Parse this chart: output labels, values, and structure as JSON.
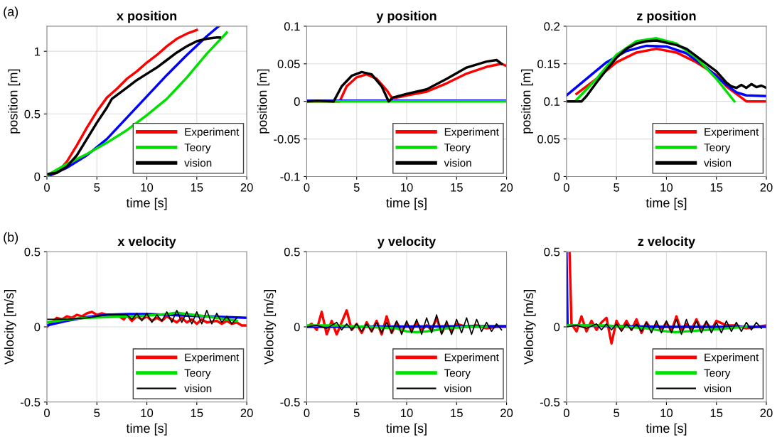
{
  "chart_data": [
    {
      "type": "line",
      "title": "x position",
      "xlabel": "time [s]",
      "ylabel": "position [m]",
      "annotations": [
        "(a)"
      ],
      "xlim": [
        0,
        20
      ],
      "xticks": [
        0,
        5,
        10,
        15,
        20
      ],
      "ylim": [
        0,
        1.2
      ],
      "yticks": [
        0,
        0.5,
        1
      ],
      "grid": true,
      "legend": "bottom right",
      "series": [
        {
          "name": "Experiment",
          "color": "#ff0000",
          "x": [
            0,
            1,
            2,
            3,
            4,
            5,
            6,
            7,
            8,
            9,
            10,
            11,
            12,
            13,
            14,
            15
          ],
          "values": [
            0,
            0.03,
            0.12,
            0.25,
            0.39,
            0.52,
            0.63,
            0.7,
            0.78,
            0.84,
            0.91,
            0.97,
            1.04,
            1.1,
            1.14,
            1.17
          ]
        },
        {
          "color": "#0000ff",
          "x": [
            0,
            2,
            4,
            6,
            8,
            10,
            12,
            14,
            16,
            17.2
          ],
          "values": [
            0,
            0.07,
            0.17,
            0.3,
            0.47,
            0.64,
            0.81,
            0.97,
            1.12,
            1.2
          ]
        },
        {
          "name": "Teory",
          "color": "#00e000",
          "x": [
            0,
            2,
            4,
            6,
            8,
            10,
            12,
            14,
            16,
            18
          ],
          "values": [
            0.01,
            0.1,
            0.18,
            0.27,
            0.37,
            0.49,
            0.62,
            0.79,
            0.98,
            1.15
          ]
        },
        {
          "name": "vision",
          "color": "#000000",
          "x": [
            0,
            1,
            2,
            3,
            4,
            5,
            6,
            6.5,
            7,
            8,
            9,
            10,
            11,
            12,
            13,
            14,
            15,
            16,
            17,
            17.3
          ],
          "values": [
            0.02,
            0.03,
            0.08,
            0.17,
            0.3,
            0.43,
            0.55,
            0.62,
            0.65,
            0.71,
            0.77,
            0.82,
            0.87,
            0.93,
            0.99,
            1.04,
            1.08,
            1.1,
            1.11,
            1.11
          ]
        }
      ]
    },
    {
      "type": "line",
      "title": "y position",
      "xlabel": "time [s]",
      "ylabel": "position [m]",
      "xlim": [
        0,
        20
      ],
      "xticks": [
        0,
        5,
        10,
        15,
        20
      ],
      "ylim": [
        -0.1,
        0.1
      ],
      "yticks": [
        -0.1,
        -0.05,
        0,
        0.05,
        0.1
      ],
      "grid": true,
      "legend": "bottom right",
      "series": [
        {
          "name": "Experiment",
          "color": "#ff0000",
          "x": [
            0,
            3.3,
            4,
            5,
            6,
            7,
            8,
            8.5,
            9,
            10,
            12,
            14,
            16,
            18,
            19.5,
            20
          ],
          "values": [
            0,
            0,
            0.02,
            0.032,
            0.036,
            0.03,
            0.015,
            0.005,
            0.005,
            0.008,
            0.013,
            0.024,
            0.037,
            0.046,
            0.05,
            0.047
          ]
        },
        {
          "color": "#0000ff",
          "x": [
            0,
            20
          ],
          "values": [
            0.001,
            0.001
          ]
        },
        {
          "name": "Teory",
          "color": "#00e000",
          "x": [
            0,
            20
          ],
          "values": [
            0,
            0
          ]
        },
        {
          "name": "vision",
          "color": "#000000",
          "x": [
            0,
            1,
            2.7,
            3.5,
            4.5,
            5.5,
            6.5,
            7.5,
            8.2,
            8.6,
            10,
            12,
            14,
            16,
            18,
            19,
            19.5
          ],
          "values": [
            0,
            0.001,
            0,
            0.02,
            0.034,
            0.039,
            0.036,
            0.02,
            0,
            0.005,
            0.01,
            0.016,
            0.03,
            0.045,
            0.053,
            0.055,
            0.05
          ]
        }
      ]
    },
    {
      "type": "line",
      "title": "z position",
      "xlabel": "time [s]",
      "ylabel": "position [m]",
      "xlim": [
        0,
        20
      ],
      "xticks": [
        0,
        5,
        10,
        15,
        20
      ],
      "ylim": [
        0,
        0.2
      ],
      "yticks": [
        0,
        0.05,
        0.1,
        0.15,
        0.2
      ],
      "grid": true,
      "legend": "bottom right",
      "series": [
        {
          "name": "Experiment",
          "color": "#ff0000",
          "x": [
            1,
            3,
            5,
            7,
            9,
            11,
            13,
            15,
            16,
            17,
            18,
            20
          ],
          "values": [
            0.11,
            0.13,
            0.152,
            0.165,
            0.17,
            0.165,
            0.152,
            0.135,
            0.12,
            0.11,
            0.1,
            0.1
          ]
        },
        {
          "color": "#0000ff",
          "x": [
            0,
            2,
            4,
            6,
            8,
            10,
            12,
            14,
            16,
            17,
            18,
            20
          ],
          "values": [
            0.108,
            0.13,
            0.152,
            0.167,
            0.174,
            0.173,
            0.164,
            0.145,
            0.122,
            0.112,
            0.108,
            0.107
          ]
        },
        {
          "name": "Teory",
          "color": "#00e000",
          "x": [
            1,
            3,
            5,
            7,
            9,
            11,
            13,
            15,
            16.8
          ],
          "values": [
            0.102,
            0.13,
            0.162,
            0.18,
            0.184,
            0.177,
            0.158,
            0.13,
            0.1
          ]
        },
        {
          "name": "vision",
          "color": "#000000",
          "x": [
            0,
            1.5,
            2,
            3,
            4,
            5,
            6,
            7,
            8,
            9,
            10,
            11,
            12,
            13,
            14,
            15,
            16,
            16.5,
            17,
            17.5,
            18,
            18.5,
            19,
            19.5,
            20
          ],
          "values": [
            0.1,
            0.1,
            0.107,
            0.125,
            0.142,
            0.158,
            0.17,
            0.177,
            0.18,
            0.181,
            0.178,
            0.175,
            0.17,
            0.16,
            0.15,
            0.14,
            0.125,
            0.12,
            0.118,
            0.122,
            0.118,
            0.123,
            0.119,
            0.121,
            0.118
          ]
        }
      ]
    },
    {
      "type": "line",
      "title": "x velocity",
      "xlabel": "time [s]",
      "ylabel": "Velocity [m/s]",
      "annotations": [
        "(b)"
      ],
      "xlim": [
        0,
        20
      ],
      "xticks": [
        0,
        5,
        10,
        15,
        20
      ],
      "ylim": [
        -0.5,
        0.5
      ],
      "yticks": [
        -0.5,
        0,
        0.5
      ],
      "grid": true,
      "legend": "bottom right",
      "series": [
        {
          "name": "Experiment",
          "color": "#ff0000",
          "x": [
            0,
            0.5,
            1,
            1.5,
            2,
            2.5,
            3,
            3.5,
            4,
            4.5,
            5,
            5.5,
            6,
            7,
            7.7,
            8,
            8.5,
            9,
            9.5,
            10,
            10.5,
            11,
            11.5,
            12,
            12.5,
            13,
            13.5,
            14,
            14.5,
            15,
            15.5,
            16,
            17,
            17.5,
            18,
            18.5,
            19,
            19.5,
            20
          ],
          "values": [
            0,
            0.03,
            0.06,
            0.05,
            0.07,
            0.06,
            0.08,
            0.07,
            0.09,
            0.1,
            0.08,
            0.09,
            0.08,
            0.08,
            0.05,
            0.08,
            0.04,
            0.07,
            0.05,
            0.07,
            0.04,
            0.06,
            0.04,
            0.07,
            0.05,
            0.03,
            0.06,
            0.03,
            0.05,
            0.02,
            0.05,
            0.03,
            0.04,
            0.02,
            0.04,
            0.02,
            0.03,
            0.01,
            0.01
          ]
        },
        {
          "color": "#0000ff",
          "x": [
            0,
            2,
            4,
            6,
            8,
            10,
            12,
            14,
            16,
            18,
            20
          ],
          "values": [
            0.01,
            0.04,
            0.065,
            0.08,
            0.085,
            0.085,
            0.08,
            0.075,
            0.07,
            0.065,
            0.06
          ]
        },
        {
          "name": "Teory",
          "color": "#00e000",
          "x": [
            0,
            2,
            4,
            6,
            8,
            10,
            12,
            13,
            14,
            16,
            18,
            19
          ],
          "values": [
            0.03,
            0.05,
            0.06,
            0.065,
            0.07,
            0.075,
            0.085,
            0.095,
            0.085,
            0.07,
            0.05,
            0.04
          ]
        },
        {
          "name": "vision",
          "color": "#000000",
          "x": [
            0,
            2,
            4,
            6,
            8,
            8.5,
            9,
            9.5,
            10,
            10.5,
            11,
            11.5,
            12,
            12.5,
            13,
            13.5,
            14,
            14.5,
            15,
            15.5,
            16,
            16.5,
            17,
            17.5,
            18,
            18.5,
            19
          ],
          "values": [
            0.05,
            0.05,
            0.06,
            0.08,
            0.08,
            0.05,
            0.09,
            0.04,
            0.09,
            0.03,
            0.08,
            0.04,
            0.1,
            0.03,
            0.11,
            0.03,
            0.1,
            0.02,
            0.1,
            0.02,
            0.11,
            0.02,
            0.09,
            0.03,
            0.07,
            0.02,
            0.06
          ]
        }
      ]
    },
    {
      "type": "line",
      "title": "y velocity",
      "xlabel": "time [s]",
      "ylabel": "Velocity [m/s]",
      "xlim": [
        0,
        20
      ],
      "xticks": [
        0,
        5,
        10,
        15,
        20
      ],
      "ylim": [
        -0.5,
        0.5
      ],
      "yticks": [
        -0.5,
        0,
        0.5
      ],
      "grid": true,
      "legend": "bottom right",
      "series": [
        {
          "name": "Experiment",
          "color": "#ff0000",
          "x": [
            0,
            0.5,
            1,
            1.5,
            2,
            2.5,
            3,
            3.5,
            4,
            4.5,
            5,
            5.5,
            6,
            6.5,
            7,
            7.5,
            8,
            8.5,
            9,
            9.5,
            10,
            10.5,
            11,
            11.5,
            12,
            12.5,
            13,
            13.5,
            14,
            14.5,
            15,
            16,
            17,
            18,
            19,
            20
          ],
          "values": [
            0,
            0.02,
            -0.02,
            0.1,
            -0.05,
            0.04,
            -0.05,
            0.03,
            0.11,
            -0.02,
            0.02,
            -0.04,
            0.03,
            -0.03,
            0.04,
            -0.05,
            0.07,
            -0.04,
            0.03,
            -0.03,
            0.02,
            -0.02,
            0.03,
            -0.02,
            0.01,
            -0.02,
            0.06,
            -0.04,
            0.02,
            -0.03,
            0.02,
            0,
            0.01,
            -0.01,
            0,
            0
          ]
        },
        {
          "color": "#0000ff",
          "x": [
            0,
            20
          ],
          "values": [
            0,
            0.005
          ]
        },
        {
          "name": "Teory",
          "color": "#00e000",
          "x": [
            0,
            3,
            6,
            9,
            10,
            11,
            12,
            13,
            14,
            16,
            18
          ],
          "values": [
            0.01,
            0.01,
            0,
            -0.01,
            -0.03,
            -0.035,
            -0.03,
            -0.02,
            -0.01,
            0,
            0
          ]
        },
        {
          "name": "vision",
          "color": "#000000",
          "x": [
            0,
            1,
            2,
            3,
            3.5,
            4,
            4.5,
            5,
            5.5,
            6,
            6.5,
            7,
            7.5,
            8,
            8.5,
            9,
            9.5,
            10,
            10.5,
            11,
            11.5,
            12,
            12.5,
            13,
            13.5,
            14,
            14.5,
            15,
            15.5,
            16,
            16.5,
            17,
            17.5,
            18,
            18.5,
            19,
            19.5
          ],
          "values": [
            0,
            0.01,
            -0.01,
            0.03,
            -0.02,
            0.02,
            -0.02,
            0.02,
            -0.03,
            0.02,
            -0.03,
            0.03,
            -0.04,
            0.03,
            -0.04,
            0.04,
            -0.05,
            0.04,
            -0.04,
            0.05,
            -0.05,
            0.06,
            -0.04,
            0.08,
            -0.05,
            0.04,
            -0.05,
            0.05,
            -0.04,
            0.06,
            -0.05,
            0.05,
            -0.03,
            0.03,
            -0.03,
            0.02,
            -0.02
          ]
        }
      ]
    },
    {
      "type": "line",
      "title": "z velocity",
      "xlabel": "time [s]",
      "ylabel": "Velocity [m/s]",
      "xlim": [
        0,
        20
      ],
      "xticks": [
        0,
        5,
        10,
        15,
        20
      ],
      "ylim": [
        -0.5,
        0.5
      ],
      "yticks": [
        -0.5,
        0,
        0.5
      ],
      "grid": true,
      "legend": "bottom right",
      "series": [
        {
          "name": "Experiment",
          "color": "#ff0000",
          "x": [
            0.3,
            0.5,
            1,
            1.5,
            2,
            2.5,
            3,
            3.5,
            4,
            4.5,
            5,
            5.5,
            6,
            6.5,
            7,
            7.5,
            8,
            8.5,
            9,
            9.5,
            10,
            10.5,
            11,
            11.5,
            12,
            12.5,
            13,
            13.5,
            14,
            14.5,
            15,
            16,
            17,
            18,
            19,
            20
          ],
          "values": [
            0.5,
            0.02,
            -0.03,
            0.07,
            -0.03,
            0.04,
            -0.02,
            0.03,
            0.06,
            -0.11,
            0.04,
            -0.02,
            0.04,
            -0.02,
            0.05,
            -0.04,
            0.03,
            -0.02,
            0.02,
            -0.02,
            0.03,
            -0.03,
            0.07,
            -0.03,
            0.02,
            -0.02,
            0.05,
            -0.02,
            0.03,
            -0.02,
            0.04,
            0.01,
            0.01,
            -0.01,
            0,
            0.01
          ]
        },
        {
          "color": "#0000ff",
          "x": [
            0,
            0.1,
            10,
            20
          ],
          "values": [
            0.5,
            0.01,
            0,
            0
          ]
        },
        {
          "name": "Teory",
          "color": "#00e000",
          "x": [
            0,
            4,
            8,
            10,
            11,
            12,
            14,
            16,
            18
          ],
          "values": [
            0.01,
            0.01,
            -0.01,
            -0.03,
            -0.035,
            -0.03,
            -0.02,
            -0.01,
            0
          ]
        },
        {
          "name": "vision",
          "color": "#000000",
          "x": [
            0,
            1,
            2,
            3,
            3.5,
            4,
            4.5,
            5,
            5.5,
            6,
            6.5,
            7,
            7.5,
            8,
            8.5,
            9,
            9.5,
            10,
            10.5,
            11,
            11.5,
            12,
            12.5,
            13,
            13.5,
            14,
            14.5,
            15,
            15.5,
            16,
            16.5,
            17,
            17.5,
            18,
            18.5,
            19,
            19.5
          ],
          "values": [
            0,
            0.01,
            -0.01,
            0.02,
            -0.02,
            0.02,
            -0.02,
            0.02,
            -0.03,
            0.02,
            -0.02,
            0.02,
            -0.03,
            0.03,
            -0.04,
            0.04,
            -0.04,
            0.04,
            -0.04,
            0.05,
            -0.05,
            0.05,
            -0.04,
            0.04,
            -0.04,
            0.04,
            -0.04,
            0.03,
            -0.04,
            0.04,
            -0.03,
            0.03,
            -0.03,
            0.03,
            -0.02,
            0.03,
            -0.01
          ]
        }
      ]
    }
  ]
}
